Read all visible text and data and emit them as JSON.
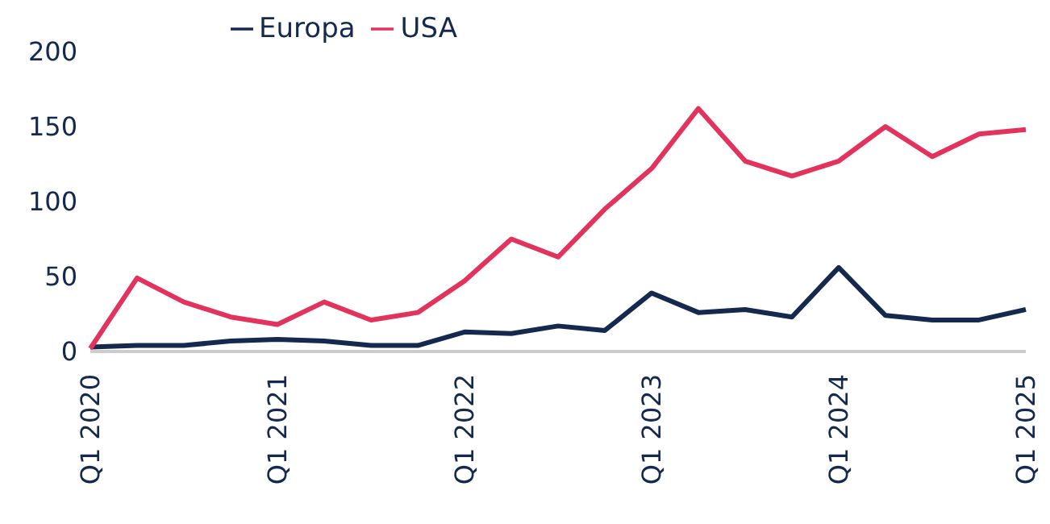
{
  "chart_data": {
    "type": "line",
    "categories": [
      "Q1 2020",
      null,
      null,
      null,
      "Q1 2021",
      null,
      null,
      null,
      "Q1 2022",
      null,
      null,
      null,
      "Q1 2023",
      null,
      null,
      null,
      "Q1 2024",
      null,
      null,
      null,
      "Q1 2025"
    ],
    "series": [
      {
        "name": "Europa",
        "color": "#15294f",
        "values": [
          3,
          4,
          4,
          7,
          8,
          7,
          4,
          4,
          13,
          12,
          17,
          14,
          39,
          26,
          28,
          23,
          56,
          24,
          21,
          21,
          28
        ]
      },
      {
        "name": "USA",
        "color": "#e3335c",
        "values": [
          2,
          49,
          33,
          23,
          18,
          33,
          21,
          26,
          47,
          75,
          63,
          95,
          122,
          162,
          127,
          117,
          127,
          150,
          130,
          145,
          148
        ]
      }
    ],
    "ylim": [
      0,
      200
    ],
    "yticks": [
      0,
      50,
      100,
      150,
      200
    ],
    "grid": false,
    "legend": "top",
    "marker": "none",
    "line_style": "solid"
  }
}
